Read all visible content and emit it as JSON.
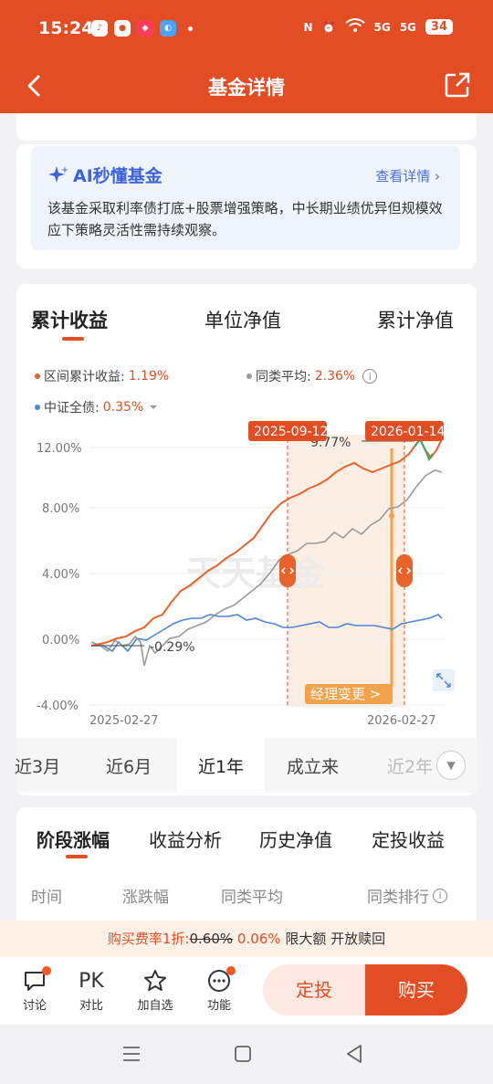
{
  "status": {
    "time": "15:24",
    "battery": "34",
    "net1": "5G",
    "net2": "5G"
  },
  "header": {
    "title": "基金详情"
  },
  "ai": {
    "title": "AI秒懂基金",
    "link": "查看详情 ›",
    "desc": "该基金采取利率债打底+股票增强策略，中长期业绩优异但规模效应下策略灵活性需持续观察。"
  },
  "chart_tabs": [
    "累计收益",
    "单位净值",
    "累计净值"
  ],
  "legend": {
    "fund_label": "区间累计收益:",
    "fund_value": "1.19%",
    "peer_label": "同类平均:",
    "peer_value": "2.36%",
    "index_label": "中证全债:",
    "index_value": "0.35%"
  },
  "chart_data": {
    "type": "line",
    "y_ticks": [
      "12.00%",
      "8.00%",
      "4.00%",
      "0.00%",
      "-4.00%"
    ],
    "ylim": [
      -4,
      12
    ],
    "x_start": "2025-02-27",
    "x_end": "2026-02-27",
    "markers": [
      "2025-09-12",
      "2026-01-14"
    ],
    "annotations": {
      "max": "9.77%",
      "min": "-0.29%",
      "manager_change": "经理变更 >"
    },
    "watermark": "天天基金",
    "colors": {
      "fund": "#e8622c",
      "peer": "#9a9a9a",
      "index": "#4a86d8"
    }
  },
  "periods": [
    "近3月",
    "近6月",
    "近1年",
    "成立来",
    "近2年"
  ],
  "stage_tabs": [
    "阶段涨幅",
    "收益分析",
    "历史净值",
    "定投收益"
  ],
  "stage_columns": [
    "时间",
    "涨跌幅",
    "同类平均",
    "同类排行"
  ],
  "fee": {
    "prefix": "购买费率1折:",
    "original": "0.60%",
    "discount": "0.06%",
    "suffix": "限大额 开放赎回"
  },
  "bottom": {
    "discuss": "讨论",
    "pk": "PK",
    "compare": "对比",
    "watch": "加自选",
    "func": "功能",
    "invest": "定投",
    "buy": "购买"
  }
}
